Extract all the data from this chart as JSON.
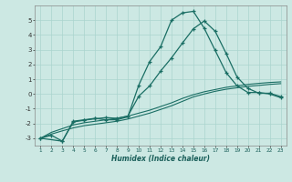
{
  "xlabel": "Humidex (Indice chaleur)",
  "background_color": "#cce8e3",
  "grid_color": "#aad4ce",
  "line_color": "#1a6e64",
  "x_ticks": [
    1,
    2,
    3,
    4,
    5,
    6,
    7,
    8,
    9,
    10,
    11,
    12,
    13,
    14,
    15,
    16,
    17,
    18,
    19,
    20,
    21,
    22,
    23
  ],
  "xlim": [
    0.5,
    23.5
  ],
  "ylim": [
    -3.5,
    6.0
  ],
  "yticks": [
    -3,
    -2,
    -1,
    0,
    1,
    2,
    3,
    4,
    5
  ],
  "series_main_x": [
    1,
    2,
    3,
    4,
    5,
    6,
    7,
    8,
    9,
    10,
    11,
    12,
    13,
    14,
    15,
    16,
    17,
    18,
    19,
    20,
    21,
    22,
    23
  ],
  "series_main_y": [
    -3.0,
    -2.8,
    -3.2,
    -1.85,
    -1.75,
    -1.65,
    -1.75,
    -1.75,
    -1.55,
    0.6,
    2.2,
    3.2,
    5.0,
    5.5,
    5.6,
    4.45,
    2.95,
    1.45,
    0.55,
    0.1,
    0.1,
    0.0,
    -0.25
  ],
  "series_line1_x": [
    1,
    2,
    3,
    4,
    5,
    6,
    7,
    8,
    9,
    10,
    11,
    12,
    13,
    14,
    15,
    16,
    17,
    18,
    19,
    20,
    21,
    22,
    23
  ],
  "series_line1_y": [
    -3.0,
    -2.6,
    -2.35,
    -2.1,
    -1.95,
    -1.85,
    -1.75,
    -1.65,
    -1.5,
    -1.3,
    -1.1,
    -0.85,
    -0.6,
    -0.3,
    -0.05,
    0.15,
    0.3,
    0.45,
    0.55,
    0.65,
    0.72,
    0.78,
    0.82
  ],
  "series_line2_x": [
    1,
    2,
    3,
    4,
    5,
    6,
    7,
    8,
    9,
    10,
    11,
    12,
    13,
    14,
    15,
    16,
    17,
    18,
    19,
    20,
    21,
    22,
    23
  ],
  "series_line2_y": [
    -3.0,
    -2.72,
    -2.5,
    -2.3,
    -2.15,
    -2.05,
    -1.95,
    -1.85,
    -1.7,
    -1.5,
    -1.3,
    -1.05,
    -0.8,
    -0.5,
    -0.2,
    0.0,
    0.18,
    0.32,
    0.42,
    0.52,
    0.58,
    0.65,
    0.7
  ],
  "series_sub_x": [
    1,
    3,
    4,
    5,
    6,
    7,
    8,
    9,
    10,
    11,
    12,
    13,
    14,
    15,
    16,
    17,
    18,
    19,
    20,
    21,
    22,
    23
  ],
  "series_sub_y": [
    -3.0,
    -3.2,
    -1.9,
    -1.78,
    -1.68,
    -1.6,
    -1.65,
    -1.5,
    -0.15,
    0.55,
    1.55,
    2.45,
    3.45,
    4.42,
    4.95,
    4.25,
    2.75,
    1.15,
    0.38,
    0.05,
    0.05,
    -0.18
  ]
}
